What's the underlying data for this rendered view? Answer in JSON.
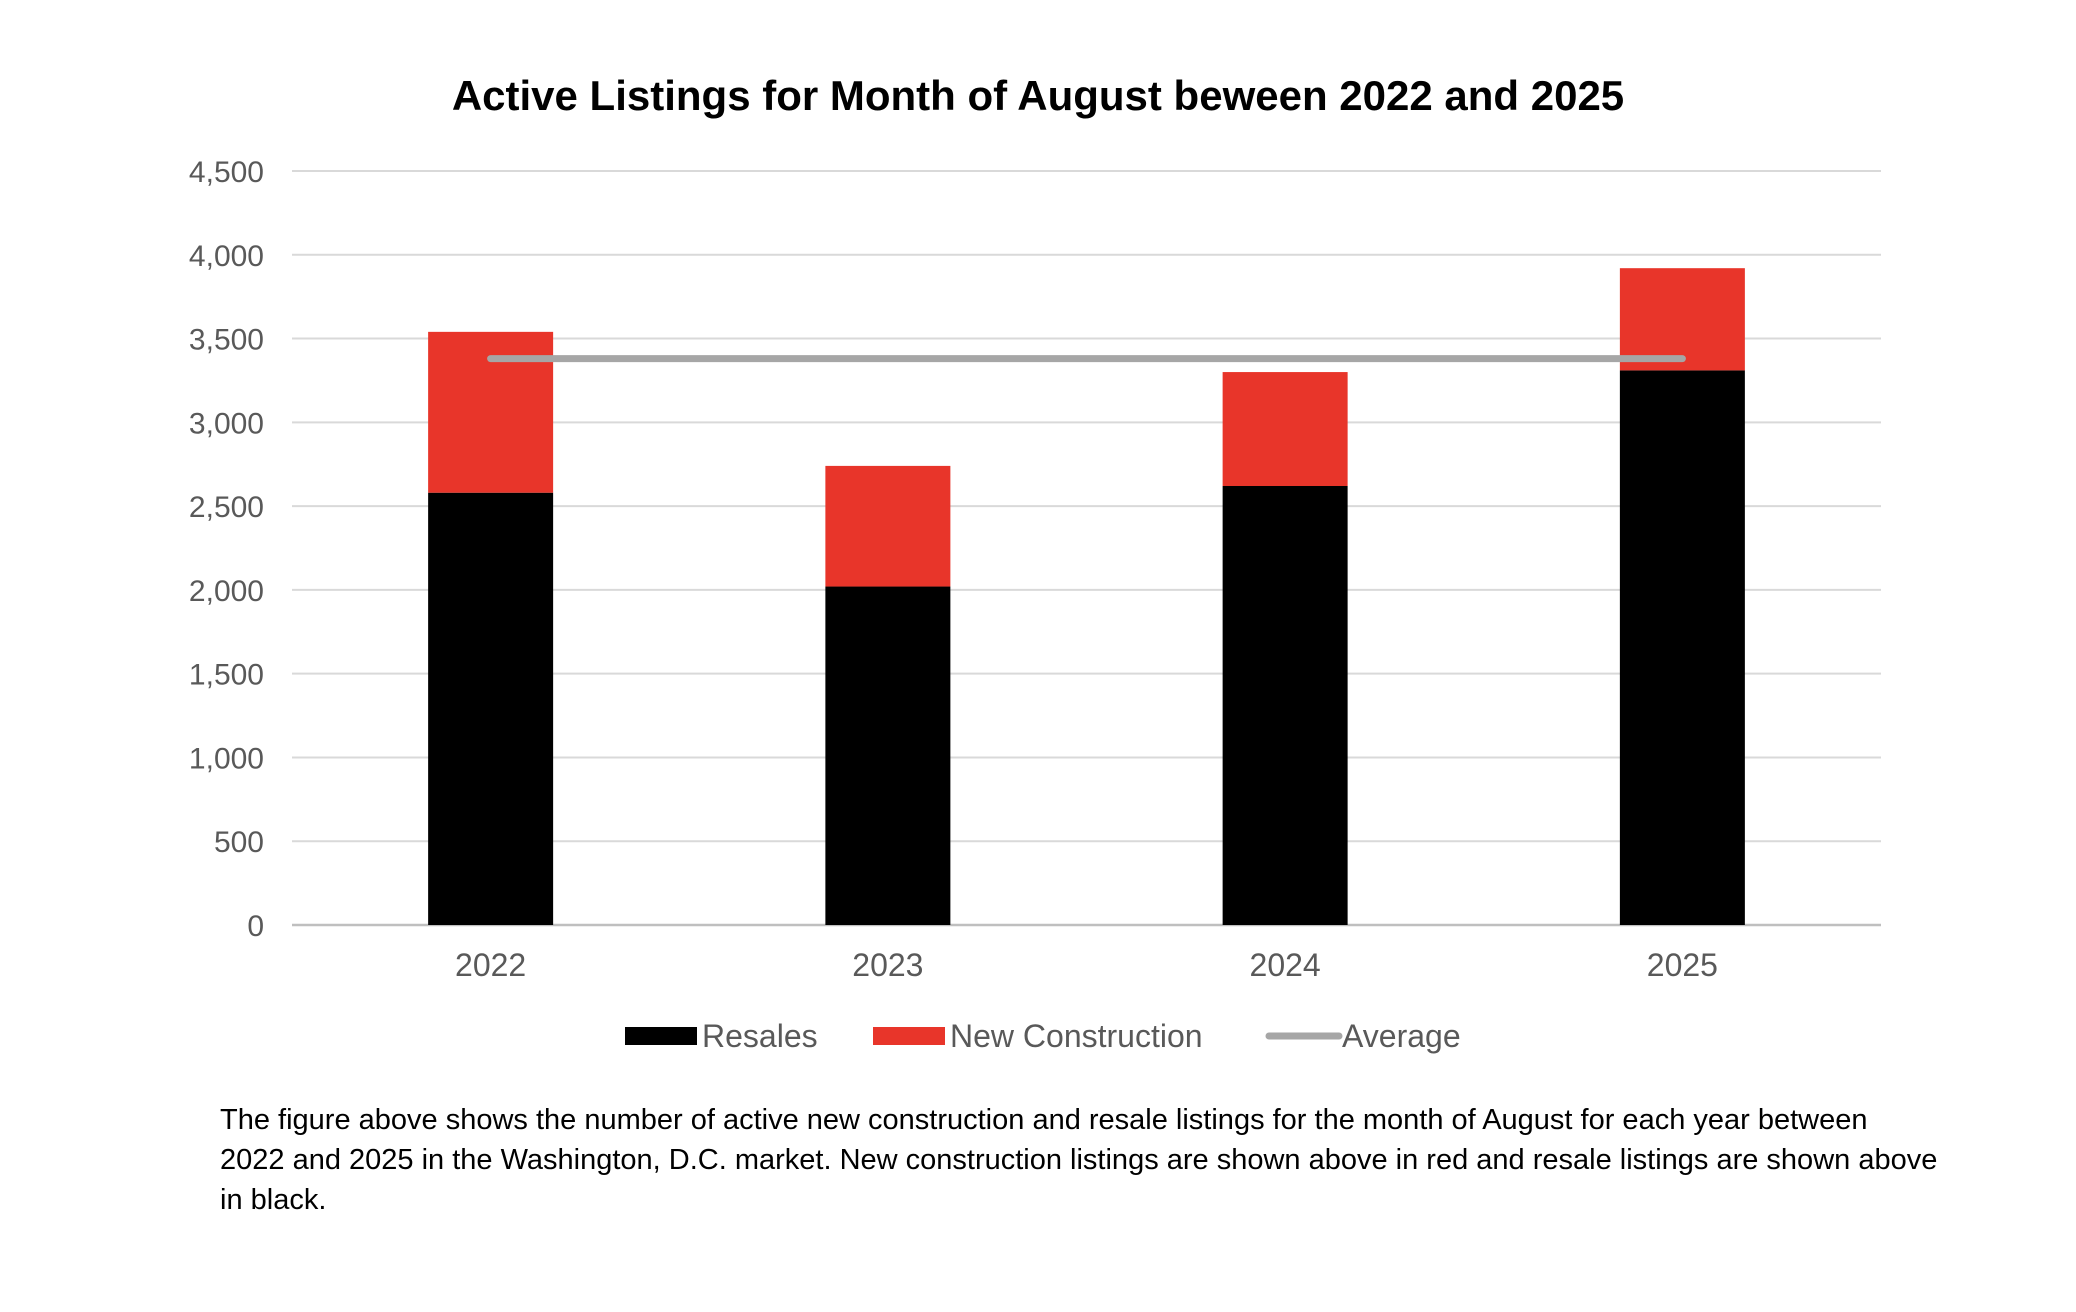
{
  "chart_data": {
    "type": "bar",
    "stacked": true,
    "title": "Active Listings for Month of August beween 2022 and 2025",
    "categories": [
      "2022",
      "2023",
      "2024",
      "2025"
    ],
    "series": [
      {
        "name": "Resales",
        "values": [
          2580,
          2020,
          2620,
          3310
        ],
        "color": "#000000"
      },
      {
        "name": "New Construction",
        "values": [
          960,
          720,
          680,
          610
        ],
        "color": "#E8352A"
      }
    ],
    "average": {
      "name": "Average",
      "value": 3380,
      "color": "#A6A6A6"
    },
    "ylim": [
      0,
      4500
    ],
    "yticks": [
      "0",
      "500",
      "1,000",
      "1,500",
      "2,000",
      "2,500",
      "3,000",
      "3,500",
      "4,000",
      "4,500"
    ],
    "grid": true,
    "legend": "bottom"
  },
  "caption": "The figure above shows the number of active new construction and resale listings for the month of August for each year between 2022 and 2025 in the Washington, D.C. market. New construction listings are shown above in red and resale listings are shown above in black."
}
